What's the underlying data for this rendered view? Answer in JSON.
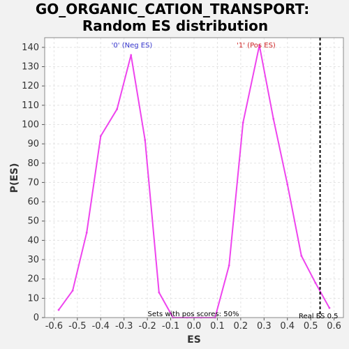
{
  "chart_data": {
    "type": "line",
    "title": "GO_ORGANIC_CATION_TRANSPORT:",
    "subtitle": "Random ES distribution",
    "xlabel": "ES",
    "ylabel": "P(ES)",
    "xlim": [
      -0.64,
      0.64
    ],
    "ylim": [
      0,
      145
    ],
    "x_ticks": [
      "-0.6",
      "-0.5",
      "-0.4",
      "-0.3",
      "-0.2",
      "-0.1",
      "0.0",
      "0.1",
      "0.2",
      "0.3",
      "0.4",
      "0.5",
      "0.6"
    ],
    "y_ticks": [
      "0",
      "10",
      "20",
      "30",
      "40",
      "50",
      "60",
      "70",
      "80",
      "90",
      "100",
      "110",
      "120",
      "130",
      "140"
    ],
    "grid": true,
    "series": [
      {
        "color": "#ee44ee",
        "x": [
          -0.58,
          -0.52,
          -0.46,
          -0.4,
          -0.33,
          -0.27,
          -0.21,
          -0.15,
          -0.09,
          -0.03,
          0.03,
          0.09,
          0.15,
          0.21,
          0.28,
          0.34,
          0.4,
          0.46,
          0.52,
          0.58
        ],
        "y": [
          4,
          14,
          44,
          94,
          108,
          136,
          92,
          13,
          0,
          0,
          0,
          0,
          27,
          101,
          141,
          103,
          69,
          32,
          18,
          5
        ]
      }
    ],
    "real_es": 0.54,
    "annotations": {
      "neg_label": "'0' (Neg ES)",
      "pos_label": "'1' (Pos ES)",
      "sets_text": "Sets with pos scores: 50%",
      "real_es_text": "Real ES 0.5"
    },
    "colors": {
      "neg": "#3333cc",
      "pos": "#cc2222",
      "line": "#ee44ee",
      "real_es_line": "#000000"
    }
  }
}
